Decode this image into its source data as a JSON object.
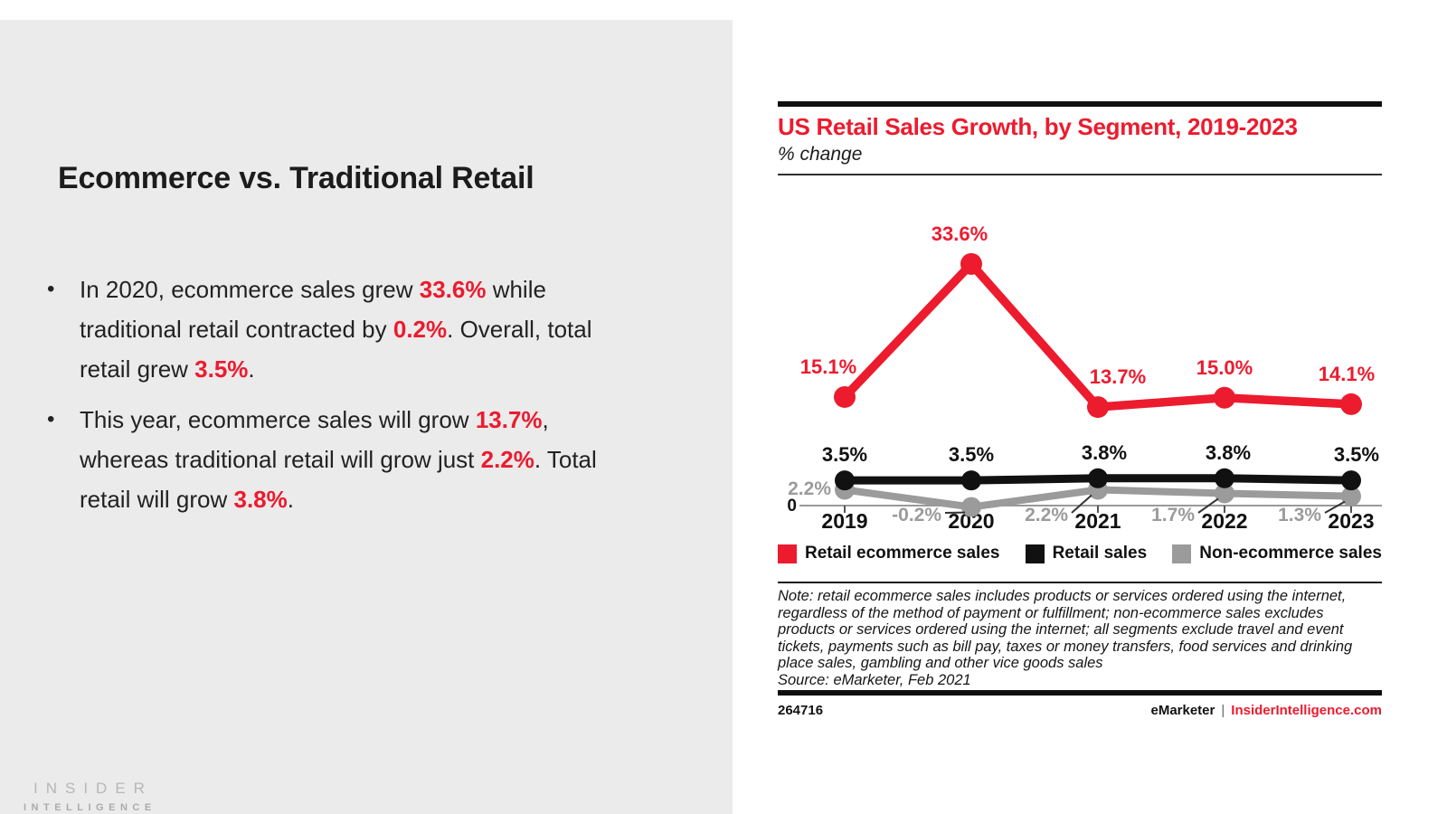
{
  "slide": {
    "title": "Ecommerce vs. Traditional Retail",
    "bullets": [
      {
        "segments": [
          {
            "text": "In 2020, ecommerce sales grew "
          },
          {
            "text": "33.6%",
            "highlight": true
          },
          {
            "text": " while traditional retail contracted by "
          },
          {
            "text": "0.2%",
            "highlight": true
          },
          {
            "text": ". Overall, total retail grew "
          },
          {
            "text": "3.5%",
            "highlight": true
          },
          {
            "text": "."
          }
        ]
      },
      {
        "segments": [
          {
            "text": "This year, ecommerce sales will grow "
          },
          {
            "text": "13.7%",
            "highlight": true
          },
          {
            "text": ", whereas traditional retail will grow just "
          },
          {
            "text": "2.2%",
            "highlight": true
          },
          {
            "text": ". Total retail will grow "
          },
          {
            "text": "3.8%",
            "highlight": true
          },
          {
            "text": "."
          }
        ]
      }
    ],
    "logo": {
      "line1": "INSIDER",
      "line2": "INTELLIGENCE"
    }
  },
  "chart": {
    "title": "US Retail Sales Growth, by Segment, 2019-2023",
    "subtitle": "% change",
    "note": "Note: retail ecommerce sales includes products or services ordered using the internet, regardless of the method of payment or fulfillment; non-ecommerce sales excludes products or services ordered using the internet; all segments exclude travel and event tickets, payments such as bill pay, taxes or money transfers, food services and drinking place sales, gambling and other vice goods sales",
    "source": "Source: eMarketer, Feb 2021",
    "footer": {
      "chart_id": "264716",
      "brand": "eMarketer",
      "separator": "|",
      "site": "InsiderIntelligence.com"
    }
  },
  "chart_data": {
    "type": "line",
    "title": "US Retail Sales Growth, by Segment, 2019-2023",
    "xlabel": "",
    "ylabel": "% change",
    "categories": [
      "2019",
      "2020",
      "2021",
      "2022",
      "2023"
    ],
    "series": [
      {
        "name": "Retail ecommerce sales",
        "color": "#ec1b2e",
        "values": [
          15.1,
          33.6,
          13.7,
          15.0,
          14.1
        ]
      },
      {
        "name": "Retail sales",
        "color": "#111111",
        "values": [
          3.5,
          3.5,
          3.8,
          3.8,
          3.5
        ]
      },
      {
        "name": "Non-ecommerce sales",
        "color": "#9b9b9b",
        "values": [
          2.2,
          -0.2,
          2.2,
          1.7,
          1.3
        ]
      }
    ],
    "ylim": [
      -2,
      36
    ],
    "baseline_label": "0",
    "grid": false,
    "legend_position": "bottom",
    "colors": {
      "accent_red": "#ec1b2e",
      "line_black": "#111111",
      "line_gray": "#9b9b9b",
      "panel_gray": "#ebebeb"
    }
  }
}
